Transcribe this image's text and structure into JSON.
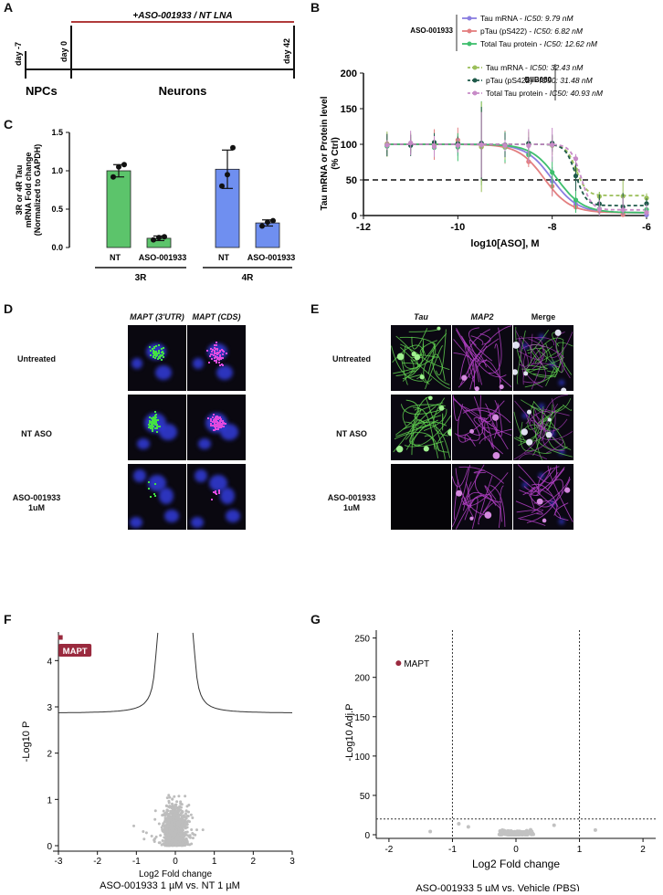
{
  "panels": {
    "A": "A",
    "B": "B",
    "C": "C",
    "D": "D",
    "E": "E",
    "F": "F",
    "G": "G"
  },
  "panel_a": {
    "treatment": "+ASO-001933 / NT LNA",
    "day_start": "day -7",
    "day_0": "day 0",
    "day_end": "day 42",
    "stage1": "NPCs",
    "stage2": "Neurons",
    "line_color": "#b03a3a"
  },
  "panel_d": {
    "col_labels": [
      "MAPT (3'UTR)",
      "MAPT (CDS)"
    ],
    "row_labels": [
      "Untreated",
      "NT ASO",
      "ASO-001933 1uM"
    ]
  },
  "panel_e": {
    "col_labels": [
      "Tau",
      "MAP2",
      "Merge"
    ],
    "row_labels": [
      "Untreated",
      "NT ASO",
      "ASO-001933 1uM"
    ]
  },
  "chart_data": [
    {
      "id": "B",
      "type": "line",
      "xlabel": "log10[ASO], M",
      "ylabel": "Tau mRNA or Protein level (% Ctrl)",
      "xlim": [
        -12,
        -6
      ],
      "ylim": [
        0,
        200
      ],
      "xticks": [
        -12,
        -10,
        -8,
        -6
      ],
      "yticks": [
        0,
        50,
        100,
        150,
        200
      ],
      "threshold": 50,
      "legend_groups": [
        {
          "name": "ASO-001933",
          "entries": [
            {
              "label": "Tau mRNA - IC50: 9.79 nM",
              "color": "#8a7ee0",
              "log_ic50": -8.01
            },
            {
              "label": "pTau (pS422) - IC50: 6.82 nM",
              "color": "#e37f80",
              "log_ic50": -8.17
            },
            {
              "label": "Total Tau protein - IC50: 12.62 nM",
              "color": "#3fbf6e",
              "log_ic50": -7.9
            }
          ]
        },
        {
          "name": "BIIB080",
          "entries": [
            {
              "label": "Tau mRNA - IC50: 32.43 nM",
              "color": "#9bbf5a",
              "log_ic50": -7.49
            },
            {
              "label": "pTau (pS422) - IC50: 31.48 nM",
              "color": "#1f5a4a",
              "log_ic50": -7.5
            },
            {
              "label": "Total Tau protein - IC50: 40.93 nM",
              "color": "#c78bc7",
              "log_ic50": -7.39
            }
          ]
        }
      ],
      "x_points": [
        -11.5,
        -11,
        -10.5,
        -10,
        -9.5,
        -9,
        -8.5,
        -8,
        -7.5,
        -7,
        -6.5,
        -6
      ]
    },
    {
      "id": "C",
      "type": "bar",
      "ylabel": "3R or 4R Tau mRNA Fold change (Normalized to GAPDH)",
      "categories": [
        "NT",
        "ASO-001933",
        "NT",
        "ASO-001933"
      ],
      "groups": [
        "3R",
        "4R"
      ],
      "values": [
        1.0,
        0.12,
        1.02,
        0.32
      ],
      "errors": [
        0.08,
        0.03,
        0.25,
        0.04
      ],
      "points": [
        [
          0.92,
          1.05,
          1.08
        ],
        [
          0.1,
          0.13,
          0.14
        ],
        [
          0.8,
          0.95,
          1.3
        ],
        [
          0.28,
          0.33,
          0.35
        ]
      ],
      "colors": [
        "#5cc46b",
        "#5cc46b",
        "#6f8ff0",
        "#6f8ff0"
      ],
      "ylim": [
        0,
        1.5
      ],
      "yticks": [
        0.0,
        0.5,
        1.0,
        1.5
      ]
    },
    {
      "id": "F",
      "type": "scatter",
      "xlabel": "Log2 Fold change",
      "ylabel": "-Log10 P",
      "caption": "ASO-001933 1 µM vs. NT 1 µM",
      "xlim": [
        -3,
        3
      ],
      "ylim": [
        0,
        4.5
      ],
      "xticks": [
        -3,
        -2,
        -1,
        0,
        1,
        2,
        3
      ],
      "yticks": [
        0,
        1,
        2,
        3,
        4
      ],
      "highlight": {
        "label": "MAPT",
        "x": -2.95,
        "y": 4.5,
        "color": "#9a2a3e"
      }
    },
    {
      "id": "G",
      "type": "scatter",
      "xlabel": "Log2 Fold change",
      "ylabel": "-Log10 Adj.P",
      "caption": "ASO-001933 5 µM vs. Vehicle (PBS)",
      "xlim": [
        -2.2,
        2.2
      ],
      "ylim": [
        0,
        260
      ],
      "xticks": [
        -2,
        -1,
        0,
        1,
        2
      ],
      "yticks": [
        0,
        50,
        100,
        150,
        200,
        250
      ],
      "vlines": [
        -1,
        1
      ],
      "hline": 20,
      "highlight": {
        "label": "MAPT",
        "x": -1.85,
        "y": 218,
        "color": "#9a2a3e"
      }
    }
  ]
}
